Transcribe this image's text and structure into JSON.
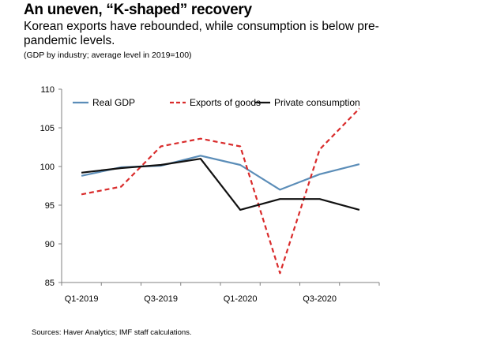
{
  "header": {
    "title": "An uneven, “K-shaped” recovery",
    "subtitle": "Korean exports have rebounded, while consumption is below pre-pandemic levels.",
    "note": "(GDP by industry; average level in 2019=100)"
  },
  "footer": {
    "source": "Sources: Haver Analytics; IMF staff calculations."
  },
  "chart_data": {
    "type": "line",
    "title": "An uneven, “K-shaped” recovery",
    "xlabel": "",
    "ylabel": "",
    "x": [
      "Q1-2019",
      "Q2-2019",
      "Q3-2019",
      "Q4-2019",
      "Q1-2020",
      "Q2-2020",
      "Q3-2020",
      "Q4-2020"
    ],
    "x_tick_labels": [
      "Q1-2019",
      "",
      "Q3-2019",
      "",
      "Q1-2020",
      "",
      "Q3-2020",
      ""
    ],
    "ylim": [
      85,
      110
    ],
    "yticks": [
      85,
      90,
      95,
      100,
      105,
      110
    ],
    "grid": false,
    "legend": "top",
    "series": [
      {
        "name": "Real GDP",
        "color": "#5B8DB8",
        "style": "solid",
        "values": [
          98.8,
          99.9,
          100.1,
          101.4,
          100.2,
          97.0,
          99.0,
          100.3
        ]
      },
      {
        "name": "Exports of goods",
        "color": "#D92B2B",
        "style": "dashed",
        "values": [
          96.4,
          97.4,
          102.6,
          103.6,
          102.6,
          86.2,
          102.2,
          107.5
        ]
      },
      {
        "name": "Private consumption",
        "color": "#111111",
        "style": "solid",
        "values": [
          99.2,
          99.8,
          100.2,
          101.0,
          94.4,
          95.8,
          95.8,
          94.4
        ]
      }
    ]
  }
}
